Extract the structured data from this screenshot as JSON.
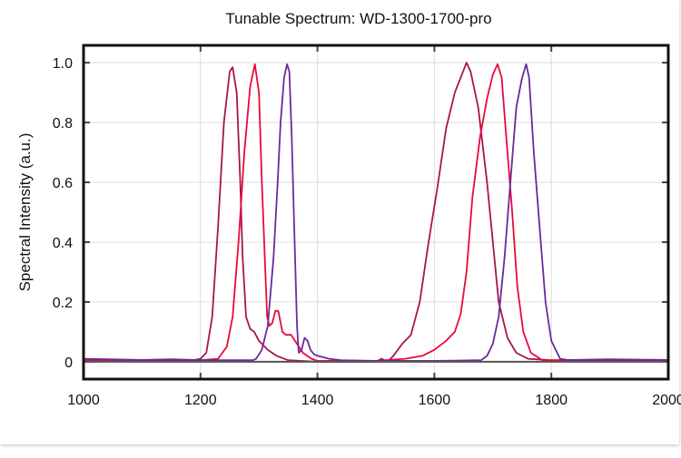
{
  "chart_data": {
    "type": "line",
    "title": "Tunable Spectrum: WD-1300-1700-pro",
    "xlabel": "",
    "ylabel": "Spectral Intensity (a.u.)",
    "xlim": [
      1000,
      2000
    ],
    "ylim": [
      -0.058,
      1.058
    ],
    "xticks": [
      1000,
      1200,
      1400,
      1600,
      1800,
      2000
    ],
    "yticks": [
      0,
      0.2,
      0.4,
      0.6,
      0.8,
      1.0
    ],
    "ytick_labels": [
      "0",
      "0.2",
      "0.4",
      "0.6",
      "0.8",
      "1.0"
    ],
    "grid": true,
    "legend": "none",
    "series": [
      {
        "color": "#a8164a",
        "x": [
          1000,
          1050,
          1100,
          1150,
          1190,
          1200,
          1210,
          1220,
          1230,
          1240,
          1250,
          1255,
          1262,
          1268,
          1272,
          1278,
          1285,
          1292,
          1300,
          1315,
          1330,
          1350,
          1400,
          1500,
          1510,
          1520,
          1530,
          1545,
          1560,
          1575,
          1590,
          1605,
          1620,
          1635,
          1645,
          1655,
          1662,
          1675,
          1690,
          1700,
          1710,
          1725,
          1740,
          1760,
          1800,
          1900,
          2000
        ],
        "y": [
          0.008,
          0.005,
          0.006,
          0.008,
          0.006,
          0.01,
          0.03,
          0.15,
          0.45,
          0.8,
          0.97,
          0.985,
          0.9,
          0.6,
          0.35,
          0.15,
          0.11,
          0.1,
          0.07,
          0.04,
          0.02,
          0.005,
          0.0,
          0.0,
          0.01,
          0.0,
          0.02,
          0.06,
          0.09,
          0.2,
          0.4,
          0.58,
          0.78,
          0.9,
          0.95,
          1.0,
          0.97,
          0.85,
          0.6,
          0.4,
          0.2,
          0.08,
          0.03,
          0.01,
          0.005,
          0.008,
          0.006
        ]
      },
      {
        "color": "#e8093c",
        "x": [
          1000,
          1100,
          1200,
          1230,
          1245,
          1255,
          1265,
          1275,
          1285,
          1293,
          1300,
          1305,
          1310,
          1314,
          1318,
          1323,
          1328,
          1333,
          1340,
          1346,
          1355,
          1365,
          1375,
          1390,
          1400,
          1500,
          1550,
          1580,
          1600,
          1620,
          1635,
          1645,
          1655,
          1665,
          1678,
          1690,
          1700,
          1708,
          1715,
          1723,
          1733,
          1742,
          1752,
          1765,
          1785,
          1900,
          2000
        ],
        "y": [
          0.004,
          0.004,
          0.005,
          0.01,
          0.05,
          0.15,
          0.4,
          0.7,
          0.92,
          0.995,
          0.9,
          0.6,
          0.35,
          0.15,
          0.12,
          0.13,
          0.17,
          0.17,
          0.1,
          0.09,
          0.09,
          0.06,
          0.03,
          0.01,
          0.003,
          0.003,
          0.01,
          0.02,
          0.04,
          0.07,
          0.1,
          0.16,
          0.3,
          0.55,
          0.75,
          0.88,
          0.96,
          0.995,
          0.95,
          0.75,
          0.5,
          0.25,
          0.1,
          0.03,
          0.005,
          0.004,
          0.004
        ]
      },
      {
        "color": "#6b2a9b",
        "x": [
          1000,
          1100,
          1200,
          1290,
          1295,
          1305,
          1315,
          1325,
          1332,
          1337,
          1343,
          1348,
          1352,
          1356,
          1361,
          1365,
          1368,
          1373,
          1378,
          1383,
          1388,
          1394,
          1400,
          1420,
          1440,
          1500,
          1600,
          1680,
          1690,
          1700,
          1710,
          1720,
          1730,
          1740,
          1750,
          1757,
          1762,
          1770,
          1780,
          1790,
          1800,
          1815,
          1830,
          1900,
          2000
        ],
        "y": [
          0.01,
          0.006,
          0.005,
          0.005,
          0.01,
          0.04,
          0.12,
          0.35,
          0.6,
          0.8,
          0.95,
          0.995,
          0.97,
          0.75,
          0.4,
          0.12,
          0.03,
          0.04,
          0.08,
          0.07,
          0.04,
          0.025,
          0.02,
          0.01,
          0.005,
          0.003,
          0.003,
          0.005,
          0.02,
          0.06,
          0.15,
          0.35,
          0.6,
          0.85,
          0.95,
          0.995,
          0.95,
          0.7,
          0.45,
          0.2,
          0.07,
          0.01,
          0.005,
          0.005,
          0.006
        ]
      }
    ]
  }
}
